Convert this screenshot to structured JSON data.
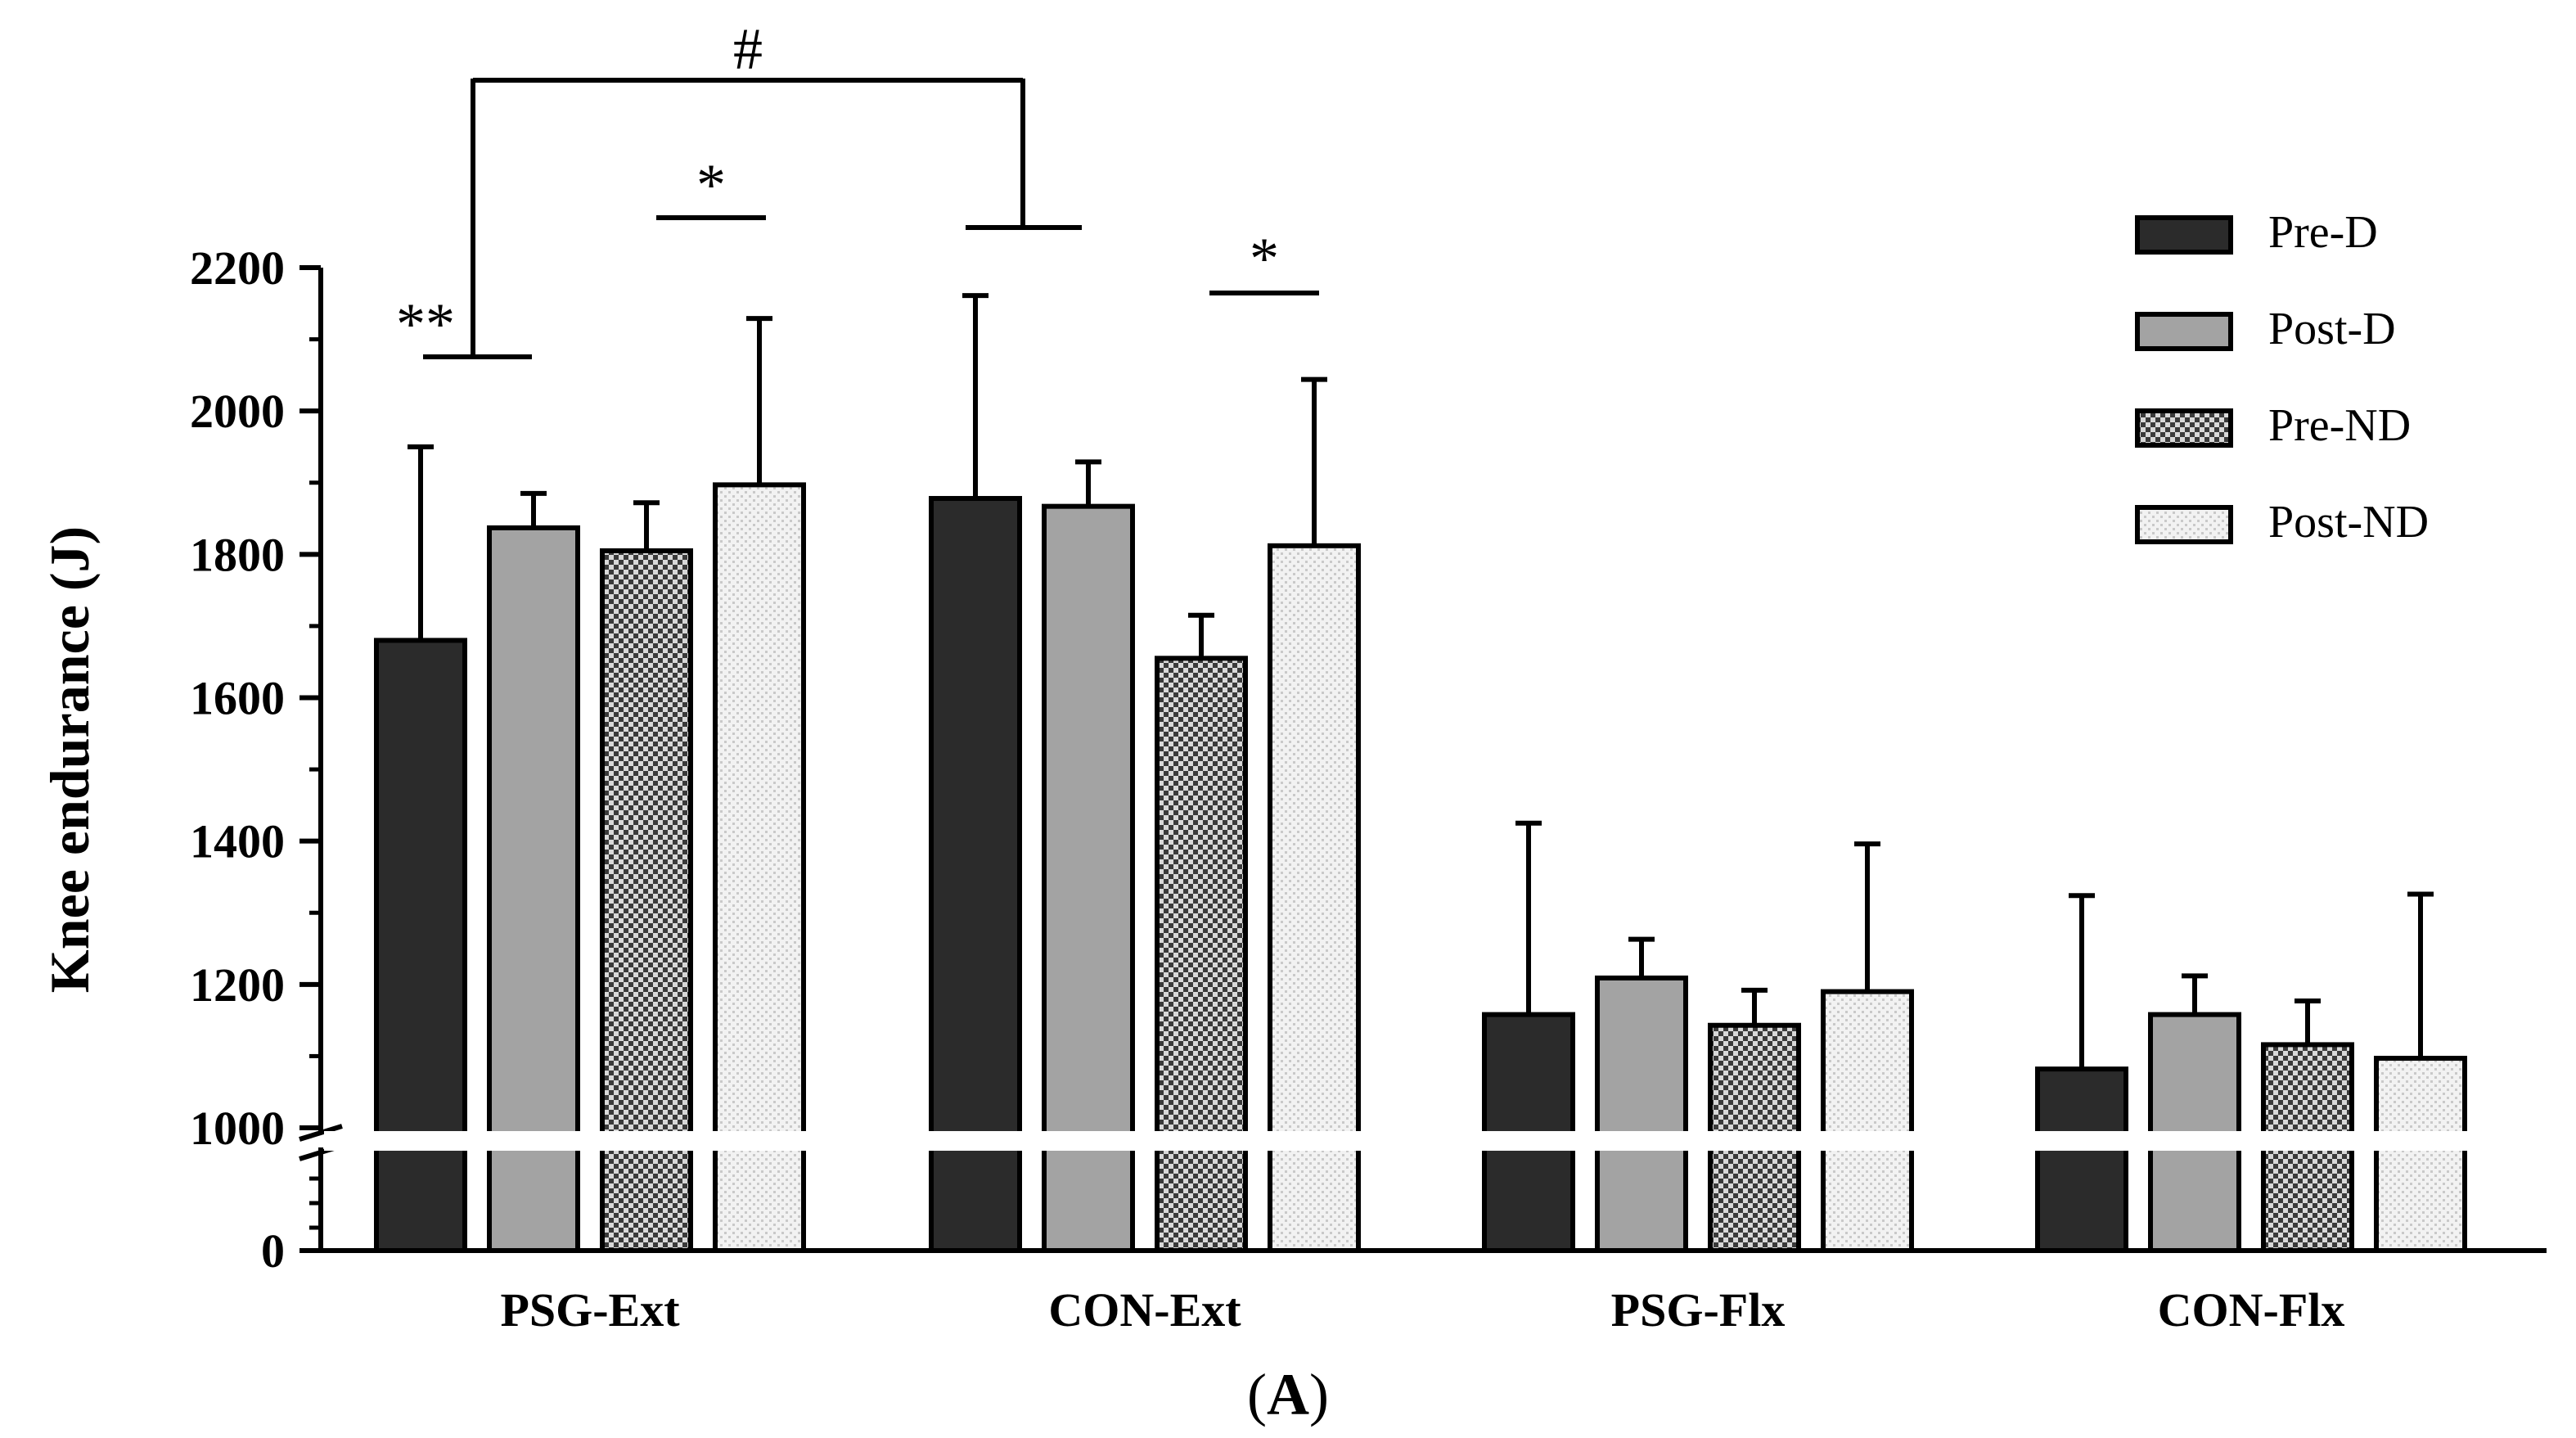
{
  "chart_data": {
    "type": "bar",
    "ylabel": "Knee endurance (J)",
    "panel_label": {
      "open": "(",
      "letter": "A",
      "close": ")"
    },
    "axis_break": true,
    "ylim_upper": [
      1000,
      2200
    ],
    "ylim_lower": [
      0,
      1000
    ],
    "yticks": [
      "2200",
      "2000",
      "1800",
      "1600",
      "1400",
      "1200",
      "1000",
      "0"
    ],
    "categories": [
      "PSG-Ext",
      "CON-Ext",
      "PSG-Flx",
      "CON-Flx"
    ],
    "series": [
      {
        "name": "Pre-D",
        "fill": "#2b2b2b",
        "pattern": "solid",
        "values": [
          1680,
          1878,
          1158,
          1082
        ],
        "errors": [
          270,
          283,
          267,
          242
        ]
      },
      {
        "name": "Post-D",
        "fill": "#a3a3a3",
        "pattern": "solid",
        "values": [
          1837,
          1867,
          1209,
          1158
        ],
        "errors": [
          48,
          62,
          54,
          54
        ]
      },
      {
        "name": "Pre-ND",
        "fill": "#6a6a6a",
        "pattern": "checker",
        "values": [
          1805,
          1655,
          1143,
          1116
        ],
        "errors": [
          67,
          60,
          49,
          61
        ]
      },
      {
        "name": "Post-ND",
        "fill": "#ececec",
        "pattern": "dots",
        "values": [
          1897,
          1812,
          1190,
          1097
        ],
        "errors": [
          232,
          232,
          206,
          229
        ]
      }
    ],
    "annotations": {
      "double_star": "**",
      "star_1": "*",
      "star_2": "*",
      "hash": "#"
    }
  }
}
